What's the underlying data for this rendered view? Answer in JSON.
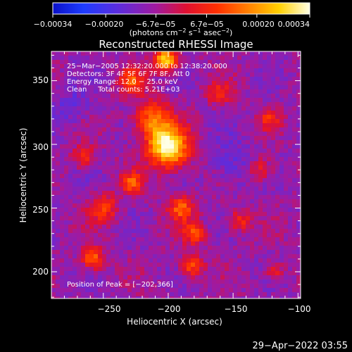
{
  "chart_data": {
    "type": "heatmap",
    "title": "Reconstructed RHESSI Image",
    "xlabel": "Heliocentric X (arcsec)",
    "ylabel": "Heliocentric Y (arcsec)",
    "xlim": [
      -290,
      -98
    ],
    "ylim": [
      179,
      373
    ],
    "x_ticks": [
      -250,
      -200,
      -150,
      -100
    ],
    "x_tick_labels": [
      "−250",
      "−200",
      "−150",
      "−100"
    ],
    "y_ticks": [
      200,
      250,
      300,
      350
    ],
    "y_tick_labels": [
      "200",
      "250",
      "300",
      "350"
    ],
    "colorbar": {
      "min": -0.00034,
      "max": 0.00034,
      "colormap": "Rainbow",
      "tick_values": [
        -0.00034,
        -0.0002,
        -6.7e-05,
        6.7e-05,
        0.0002,
        0.00034
      ],
      "tick_labels": [
        "−0.00034",
        "−0.00020",
        "−6.7e−05",
        "6.7e−05",
        "0.00020",
        "0.00034"
      ],
      "unit_label_main": "(photons cm",
      "unit_exp1": "−2",
      "unit_mid": " s",
      "unit_exp2": "−1",
      "unit_mid2": " asec",
      "unit_exp3": "−2",
      "unit_end": ")"
    },
    "peak": {
      "x": -202,
      "y": 366
    },
    "hotspots": [
      {
        "x": -200,
        "y": 298,
        "sigma": 11,
        "amp": 1.0
      },
      {
        "x": -212,
        "y": 320,
        "sigma": 10,
        "amp": 0.55
      },
      {
        "x": -202,
        "y": 366,
        "sigma": 6,
        "amp": 0.9
      },
      {
        "x": -258,
        "y": 210,
        "sigma": 6,
        "amp": 0.55
      },
      {
        "x": -228,
        "y": 350,
        "sigma": 7,
        "amp": 0.45
      },
      {
        "x": -190,
        "y": 250,
        "sigma": 7,
        "amp": 0.5
      },
      {
        "x": -180,
        "y": 230,
        "sigma": 6,
        "amp": 0.45
      },
      {
        "x": -182,
        "y": 205,
        "sigma": 6,
        "amp": 0.5
      },
      {
        "x": -250,
        "y": 250,
        "sigma": 8,
        "amp": 0.4
      },
      {
        "x": -265,
        "y": 290,
        "sigma": 6,
        "amp": 0.35
      },
      {
        "x": -130,
        "y": 280,
        "sigma": 7,
        "amp": 0.35
      },
      {
        "x": -122,
        "y": 320,
        "sigma": 6,
        "amp": 0.3
      },
      {
        "x": -118,
        "y": 200,
        "sigma": 5,
        "amp": 0.35
      },
      {
        "x": -145,
        "y": 240,
        "sigma": 6,
        "amp": 0.35
      },
      {
        "x": -228,
        "y": 270,
        "sigma": 6,
        "amp": 0.45
      },
      {
        "x": -160,
        "y": 340,
        "sigma": 7,
        "amp": 0.3
      }
    ]
  },
  "info": {
    "line1": "25−Mar−2005 12:32:20.000 to 12:38:20.000",
    "line2": "Detectors: 3F 4F 5F 6F 7F 8F, Att 0",
    "line3": "Energy Range: 12.0 − 25.0 keV",
    "line4": "Clean     Total counts: 5.21E+03",
    "peak_label": "Position of Peak = [−202,366]"
  },
  "footer": {
    "timestamp": "29−Apr−2022 03:55"
  }
}
